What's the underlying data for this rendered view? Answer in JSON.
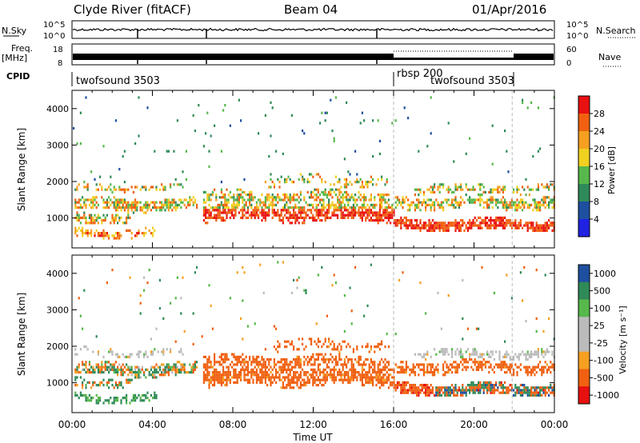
{
  "header": {
    "station": "Clyde River (fitACF)",
    "beam": "Beam 04",
    "date": "01/Apr/2016"
  },
  "strip_nsky": {
    "left_label": "N.Sky",
    "right_label": "N.Search",
    "left_ticks": [
      "10^5",
      "10^0"
    ],
    "right_ticks": [
      "10^5",
      "10^0"
    ]
  },
  "strip_freq": {
    "left_label_1": "Freq.",
    "left_label_2": "[MHz]",
    "left_ticks": [
      "18",
      "8"
    ],
    "right_ticks": [
      "60",
      "0"
    ],
    "right_label": "Nave"
  },
  "cpid": {
    "label": "CPID",
    "segments": [
      {
        "label": "twofsound 3503"
      },
      {
        "label": "rbsp 200"
      },
      {
        "label": "twofsound 3503"
      }
    ]
  },
  "colors": {
    "power": [
      "#1f22e0",
      "#1e4fa0",
      "#2f8a58",
      "#56b84a",
      "#f0d020",
      "#f5a020",
      "#f06010",
      "#e81010"
    ],
    "velocity": [
      "#e81010",
      "#f06010",
      "#f5a020",
      "#bbbbbb",
      "#bbbbbb",
      "#56b84a",
      "#2f8a58",
      "#1e4fa0"
    ]
  },
  "chart_data": [
    {
      "type": "heatmap",
      "name": "power",
      "ylabel": "Slant Range [km]",
      "x_ticks": [
        "00:00",
        "04:00",
        "08:00",
        "12:00",
        "16:00",
        "20:00",
        "00:00"
      ],
      "xlim_hours": [
        0,
        24
      ],
      "ylim": [
        180,
        4500
      ],
      "y_ticks": [
        1000,
        2000,
        3000,
        4000
      ],
      "colorbar": {
        "label": "Power [dB]",
        "ticks": [
          "28",
          "24",
          "20",
          "16",
          "12",
          "8",
          "4"
        ]
      }
    },
    {
      "type": "heatmap",
      "name": "velocity",
      "ylabel": "Slant Range [km]",
      "xlabel": "Time UT",
      "x_ticks": [
        "00:00",
        "04:00",
        "08:00",
        "12:00",
        "16:00",
        "20:00",
        "00:00"
      ],
      "xlim_hours": [
        0,
        24
      ],
      "ylim": [
        180,
        4500
      ],
      "y_ticks": [
        1000,
        2000,
        3000,
        4000
      ],
      "colorbar": {
        "label": "Velocity [m s⁻¹]",
        "ticks": [
          "1000",
          "500",
          "100",
          "25",
          "-25",
          "-100",
          "-500",
          "-1000"
        ]
      }
    }
  ]
}
